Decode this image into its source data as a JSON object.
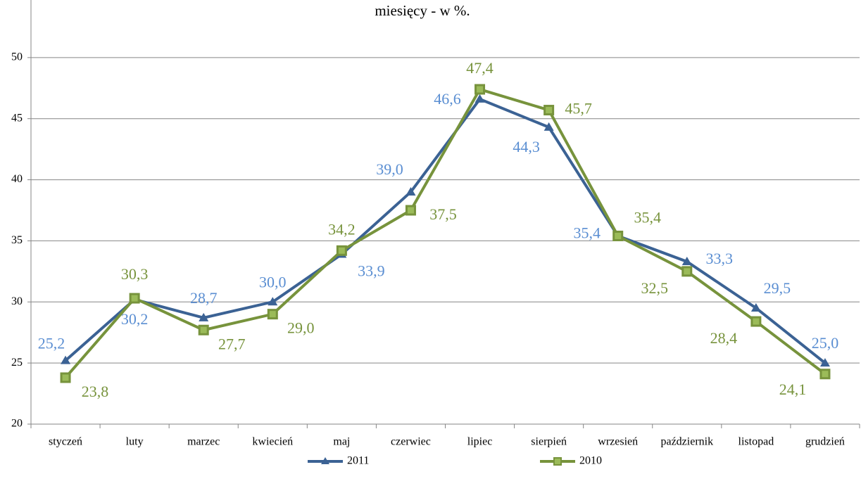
{
  "chart_data": {
    "type": "line",
    "title": "miesięcy - w %.",
    "categories": [
      "styczeń",
      "luty",
      "marzec",
      "kwiecień",
      "maj",
      "czerwiec",
      "lipiec",
      "sierpień",
      "wrzesień",
      "październik",
      "listopad",
      "grudzień"
    ],
    "series": [
      {
        "name": "2011",
        "color": "#3b6294",
        "label_color": "#5a8ed2",
        "marker": "triangle",
        "values": [
          25.2,
          30.2,
          28.7,
          30.0,
          33.9,
          39.0,
          46.6,
          44.3,
          35.4,
          33.3,
          29.5,
          25.0
        ],
        "value_labels": [
          "25,2",
          "30,2",
          "28,7",
          "30,0",
          "33,9",
          "39,0",
          "46,6",
          "44,3",
          "35,4",
          "33,3",
          "29,5",
          "25,0"
        ]
      },
      {
        "name": "2010",
        "color": "#77933c",
        "label_color": "#77933c",
        "marker": "square",
        "values": [
          23.8,
          30.3,
          27.7,
          29.0,
          34.2,
          37.5,
          47.4,
          45.7,
          35.4,
          32.5,
          28.4,
          24.1
        ],
        "value_labels": [
          "23,8",
          "30,3",
          "27,7",
          "29,0",
          "34,2",
          "37,5",
          "47,4",
          "45,7",
          "35,4",
          "32,5",
          "28,4",
          "24,1"
        ]
      }
    ],
    "ylim": [
      20,
      55
    ],
    "yticks": [
      20,
      25,
      30,
      35,
      40,
      45,
      50
    ],
    "grid": true,
    "legend": "bottom"
  }
}
